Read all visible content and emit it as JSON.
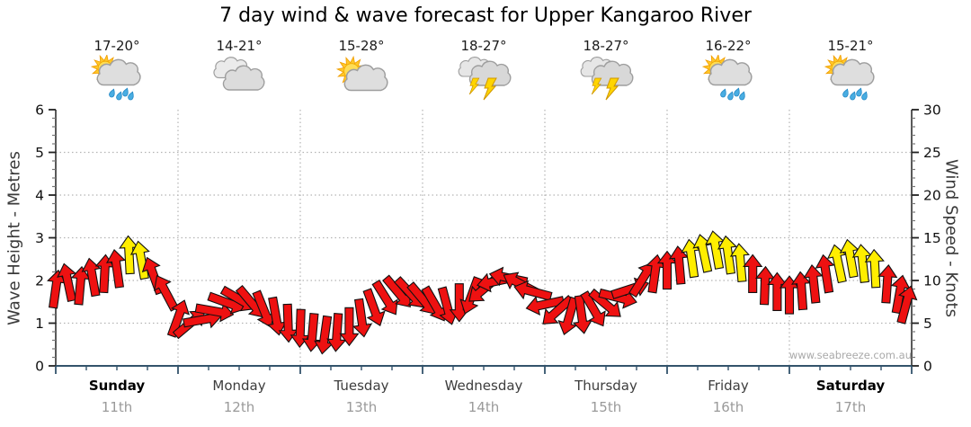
{
  "title": "7 day wind & wave forecast for Upper Kangaroo River",
  "watermark": "www.seabreeze.com.au",
  "left_axis": {
    "label": "Wave Height - Metres",
    "min": 0,
    "max": 6,
    "ticks": [
      0,
      1,
      2,
      3,
      4,
      5,
      6
    ]
  },
  "right_axis": {
    "label": "Wind Speed - Knots",
    "min": 0,
    "max": 30,
    "ticks": [
      0,
      5,
      10,
      15,
      20,
      25,
      30
    ]
  },
  "days": [
    {
      "name": "Sunday",
      "date": "11th",
      "temp": "17-20°",
      "icon": "sun-showers",
      "bold": true
    },
    {
      "name": "Monday",
      "date": "12th",
      "temp": "14-21°",
      "icon": "cloudy",
      "bold": false
    },
    {
      "name": "Tuesday",
      "date": "13th",
      "temp": "15-28°",
      "icon": "partly-sunny",
      "bold": false
    },
    {
      "name": "Wednesday",
      "date": "14th",
      "temp": "18-27°",
      "icon": "thunderstorm",
      "bold": false
    },
    {
      "name": "Thursday",
      "date": "15th",
      "temp": "18-27°",
      "icon": "thunderstorm",
      "bold": false
    },
    {
      "name": "Friday",
      "date": "16th",
      "temp": "16-22°",
      "icon": "sun-showers",
      "bold": false
    },
    {
      "name": "Saturday",
      "date": "17th",
      "temp": "15-21°",
      "icon": "sun-showers",
      "bold": true
    }
  ],
  "colors": {
    "arrow_red": "#ee1111",
    "arrow_yellow": "#ffee00",
    "arrow_outline": "#111111",
    "bottom_axis": "#33536b",
    "side_axis": "#222222",
    "grid": "#b4b4b4",
    "tick_label": "#111111",
    "minor_tick": "#777777"
  },
  "chart_data": {
    "type": "scatter",
    "subtype": "wind-direction-arrows",
    "title": "7 day wind & wave forecast for Upper Kangaroo River",
    "x_unit": "hours_from_start_of_Sunday_11th",
    "x_range": [
      0,
      168
    ],
    "left_ylabel": "Wave Height - Metres",
    "left_ylim": [
      0,
      6
    ],
    "right_ylabel": "Wind Speed - Knots",
    "right_ylim": [
      0,
      30
    ],
    "grid": "dotted, horizontal every 5 knots, vertical at each day boundary",
    "legend": "arrow colour: red = under ~12 knots, yellow = ~12+ knots; arrow rotation = wind direction",
    "point_format": [
      "hours",
      "wind_knots",
      "direction_deg_cw_from_up",
      "color r|y"
    ],
    "points": [
      [
        0,
        9.0,
        8,
        "r"
      ],
      [
        2.4,
        9.8,
        -12,
        "r"
      ],
      [
        4.8,
        9.4,
        5,
        "r"
      ],
      [
        7.2,
        10.4,
        -10,
        "r"
      ],
      [
        9.6,
        10.8,
        3,
        "r"
      ],
      [
        12,
        11.4,
        -8,
        "r"
      ],
      [
        14.4,
        13.0,
        -3,
        "y"
      ],
      [
        16.8,
        12.4,
        -10,
        "y"
      ],
      [
        19.2,
        10.6,
        -20,
        "r"
      ],
      [
        21.6,
        8.6,
        -28,
        "r"
      ],
      [
        24,
        5.6,
        20,
        "r"
      ],
      [
        26.4,
        5.0,
        50,
        "r"
      ],
      [
        28.8,
        5.4,
        80,
        "r"
      ],
      [
        31.2,
        6.4,
        100,
        "r"
      ],
      [
        33.6,
        7.4,
        110,
        "r"
      ],
      [
        36,
        7.8,
        120,
        "r"
      ],
      [
        38.4,
        7.4,
        140,
        "r"
      ],
      [
        40.8,
        6.6,
        158,
        "r"
      ],
      [
        43.2,
        5.8,
        170,
        "r"
      ],
      [
        45.6,
        5.0,
        178,
        "r"
      ],
      [
        48,
        4.4,
        182,
        "r"
      ],
      [
        50.4,
        3.9,
        185,
        "r"
      ],
      [
        52.8,
        3.6,
        188,
        "r"
      ],
      [
        55.2,
        3.9,
        184,
        "r"
      ],
      [
        57.6,
        4.6,
        180,
        "r"
      ],
      [
        60,
        5.6,
        172,
        "r"
      ],
      [
        62.4,
        6.8,
        160,
        "r"
      ],
      [
        64.8,
        7.9,
        148,
        "r"
      ],
      [
        67.2,
        8.6,
        140,
        "r"
      ],
      [
        69.6,
        8.5,
        137,
        "r"
      ],
      [
        72,
        7.8,
        140,
        "r"
      ],
      [
        74.4,
        7.2,
        150,
        "r"
      ],
      [
        76.8,
        7.0,
        165,
        "r"
      ],
      [
        79.2,
        7.4,
        180,
        "r"
      ],
      [
        81.6,
        8.2,
        200,
        "r"
      ],
      [
        84,
        9.0,
        230,
        "r"
      ],
      [
        86.4,
        9.9,
        258,
        "r"
      ],
      [
        88.8,
        10.3,
        282,
        "r"
      ],
      [
        91.2,
        9.6,
        298,
        "r"
      ],
      [
        93.6,
        8.7,
        285,
        "r"
      ],
      [
        96,
        7.2,
        258,
        "r"
      ],
      [
        98.4,
        6.4,
        228,
        "r"
      ],
      [
        100.8,
        5.8,
        196,
        "r"
      ],
      [
        103.2,
        6.0,
        172,
        "r"
      ],
      [
        105.6,
        6.6,
        150,
        "r"
      ],
      [
        108,
        7.2,
        130,
        "r"
      ],
      [
        110.4,
        8.0,
        104,
        "r"
      ],
      [
        112.8,
        9.0,
        72,
        "r"
      ],
      [
        115.2,
        10.2,
        32,
        "r"
      ],
      [
        117.6,
        10.8,
        8,
        "r"
      ],
      [
        120,
        11.2,
        0,
        "r"
      ],
      [
        122.4,
        11.8,
        -5,
        "r"
      ],
      [
        124.8,
        12.6,
        -8,
        "y"
      ],
      [
        127.2,
        13.2,
        -12,
        "y"
      ],
      [
        129.6,
        13.6,
        -10,
        "y"
      ],
      [
        132,
        13.0,
        -8,
        "y"
      ],
      [
        134.4,
        12.1,
        -5,
        "y"
      ],
      [
        136.8,
        10.8,
        0,
        "r"
      ],
      [
        139.2,
        9.4,
        2,
        "r"
      ],
      [
        141.6,
        8.7,
        0,
        "r"
      ],
      [
        144,
        8.3,
        0,
        "r"
      ],
      [
        146.4,
        8.8,
        -4,
        "r"
      ],
      [
        148.8,
        9.6,
        -6,
        "r"
      ],
      [
        151.2,
        10.8,
        -9,
        "r"
      ],
      [
        153.6,
        12.0,
        -12,
        "y"
      ],
      [
        156,
        12.6,
        -10,
        "y"
      ],
      [
        158.4,
        12.0,
        -6,
        "y"
      ],
      [
        160.8,
        11.4,
        -3,
        "y"
      ],
      [
        163.2,
        9.6,
        4,
        "r"
      ],
      [
        165.6,
        8.4,
        10,
        "r"
      ],
      [
        166.9,
        7.2,
        15,
        "r"
      ]
    ]
  }
}
